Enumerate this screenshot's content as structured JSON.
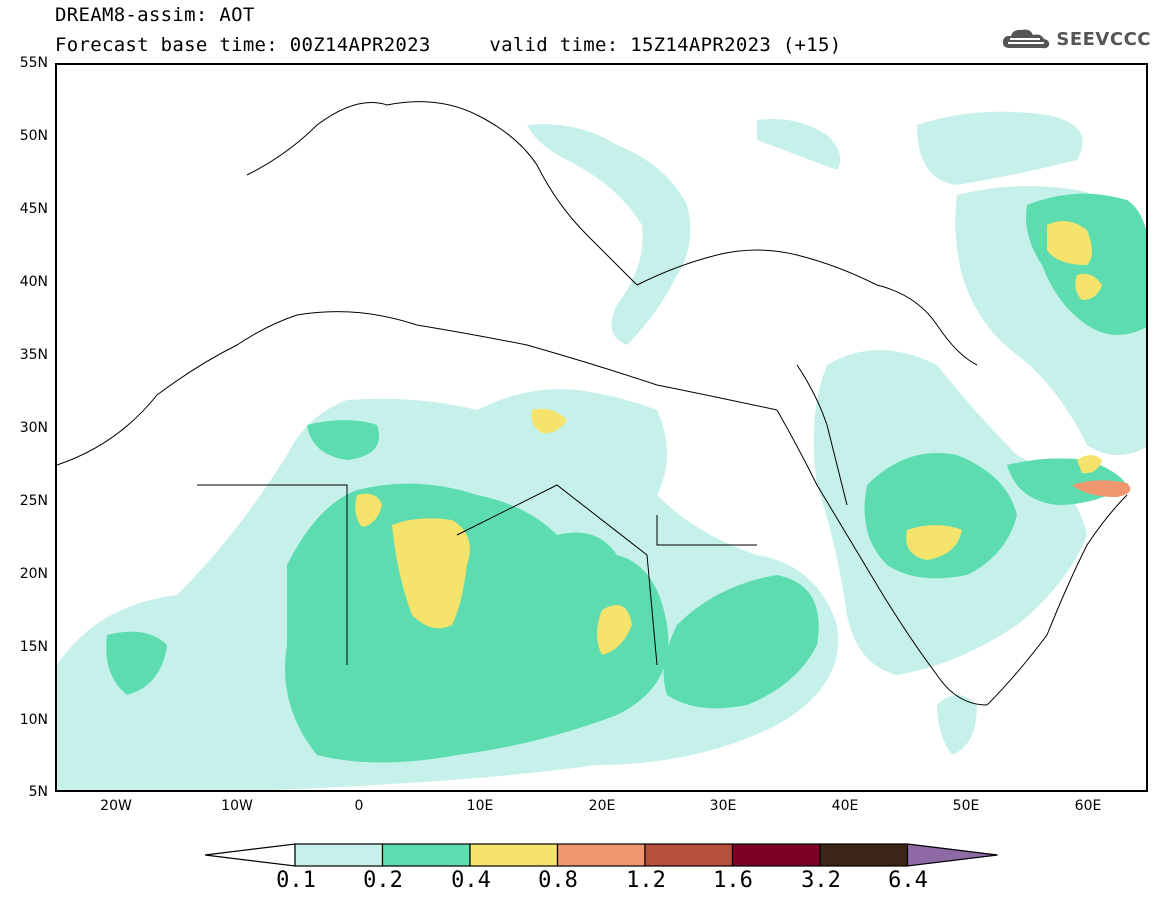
{
  "title": {
    "line1": "DREAM8-assim: AOT",
    "line2": "Forecast base time: 00Z14APR2023     valid time: 15Z14APR2023 (+15)"
  },
  "logo": {
    "text": "SEEVCCC",
    "icon": "cloud-icon"
  },
  "axes": {
    "lat_labels": [
      "55N",
      "50N",
      "45N",
      "40N",
      "35N",
      "30N",
      "25N",
      "20N",
      "15N",
      "10N",
      "5N"
    ],
    "lon_labels": [
      "20W",
      "10W",
      "0",
      "10E",
      "20E",
      "30E",
      "40E",
      "50E",
      "60E"
    ]
  },
  "colorbar": {
    "labels": [
      "0.1",
      "0.2",
      "0.4",
      "0.8",
      "1.2",
      "1.6",
      "3.2",
      "6.4"
    ],
    "colors": [
      "#ffffff",
      "#c6f1ea",
      "#5ddcb0",
      "#f5e36c",
      "#f0966e",
      "#b5503c",
      "#7d0024",
      "#3a2517",
      "#8f6aa6"
    ]
  }
}
